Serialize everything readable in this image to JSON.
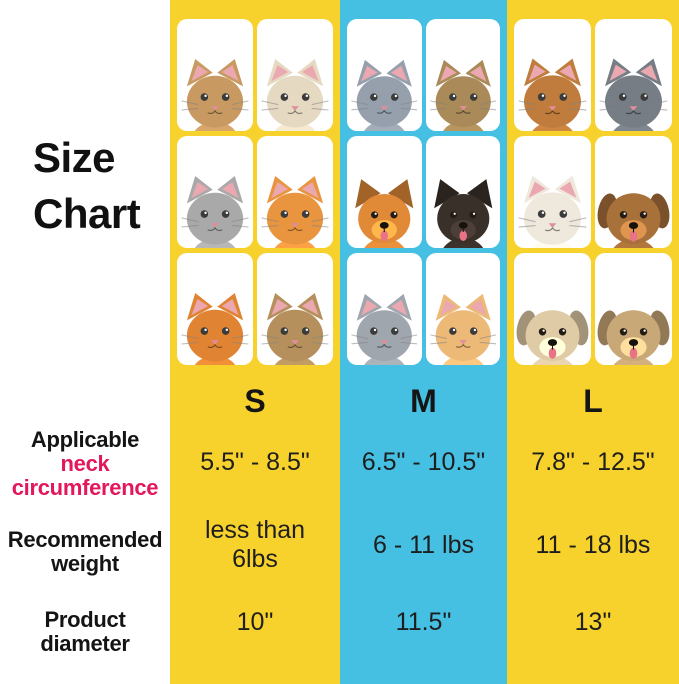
{
  "title": "Size Chart",
  "colors": {
    "yellow": "#F8D22C",
    "cyan": "#45BFE2",
    "accent_pink": "#E3175B",
    "card_white": "#FFFFFF"
  },
  "row_labels": {
    "neck_line1": "Applicable",
    "neck_line2": "neck",
    "neck_line3": "circumference",
    "weight_line1": "Recommended",
    "weight_line2": "weight",
    "diameter_line1": "Product",
    "diameter_line2": "diameter"
  },
  "columns": [
    {
      "size": "S",
      "theme": "yellow",
      "neck": "5.5\" - 8.5\"",
      "weight": "less than 6lbs",
      "diameter": "10\"",
      "photos": [
        {
          "name": "tan-fluffy-kitten",
          "species": "cat",
          "fur": "#C89A62"
        },
        {
          "name": "cream-kitten",
          "species": "cat",
          "fur": "#E5D9C2"
        },
        {
          "name": "grey-tabby-kitten",
          "species": "cat",
          "fur": "#A9A9A9"
        },
        {
          "name": "orange-kitten",
          "species": "cat",
          "fur": "#E9953F"
        },
        {
          "name": "ginger-kitten",
          "species": "cat",
          "fur": "#E08433"
        },
        {
          "name": "brown-tabby-kitten",
          "species": "cat",
          "fur": "#B5905C"
        }
      ]
    },
    {
      "size": "M",
      "theme": "cyan",
      "neck": "6.5\" - 10.5\"",
      "weight": "6 - 11 lbs",
      "diameter": "11.5\"",
      "photos": [
        {
          "name": "grey-british-shorthair-cat",
          "species": "cat",
          "fur": "#96A0AC"
        },
        {
          "name": "brown-tabby-cat",
          "species": "cat",
          "fur": "#A98A58"
        },
        {
          "name": "pomeranian-dog",
          "species": "dog",
          "fur": "#E08A38",
          "ears": "pointy"
        },
        {
          "name": "chihuahua-dog",
          "species": "dog",
          "fur": "#3A302A",
          "ears": "pointy"
        },
        {
          "name": "grey-tabby-fat-cat",
          "species": "cat",
          "fur": "#9FA6AD"
        },
        {
          "name": "cream-orange-cat",
          "species": "cat",
          "fur": "#ECB977"
        }
      ]
    },
    {
      "size": "L",
      "theme": "yellow",
      "neck": "7.8\" - 12.5\"",
      "weight": "11 - 18 lbs",
      "diameter": "13\"",
      "photos": [
        {
          "name": "orange-fluffy-cat",
          "species": "cat",
          "fur": "#BF7C3C"
        },
        {
          "name": "grey-maine-coon-cat",
          "species": "cat",
          "fur": "#767D85"
        },
        {
          "name": "white-ragdoll-cat",
          "species": "cat",
          "fur": "#EFE8DC"
        },
        {
          "name": "brown-poodle-dog",
          "species": "dog",
          "fur": "#A9713A",
          "ears": "floppy"
        },
        {
          "name": "cream-puppy-dog",
          "species": "dog",
          "fur": "#DFCBA6",
          "ears": "floppy"
        },
        {
          "name": "fawn-pug-dog",
          "species": "dog",
          "fur": "#C9A878",
          "ears": "floppy"
        }
      ]
    }
  ]
}
